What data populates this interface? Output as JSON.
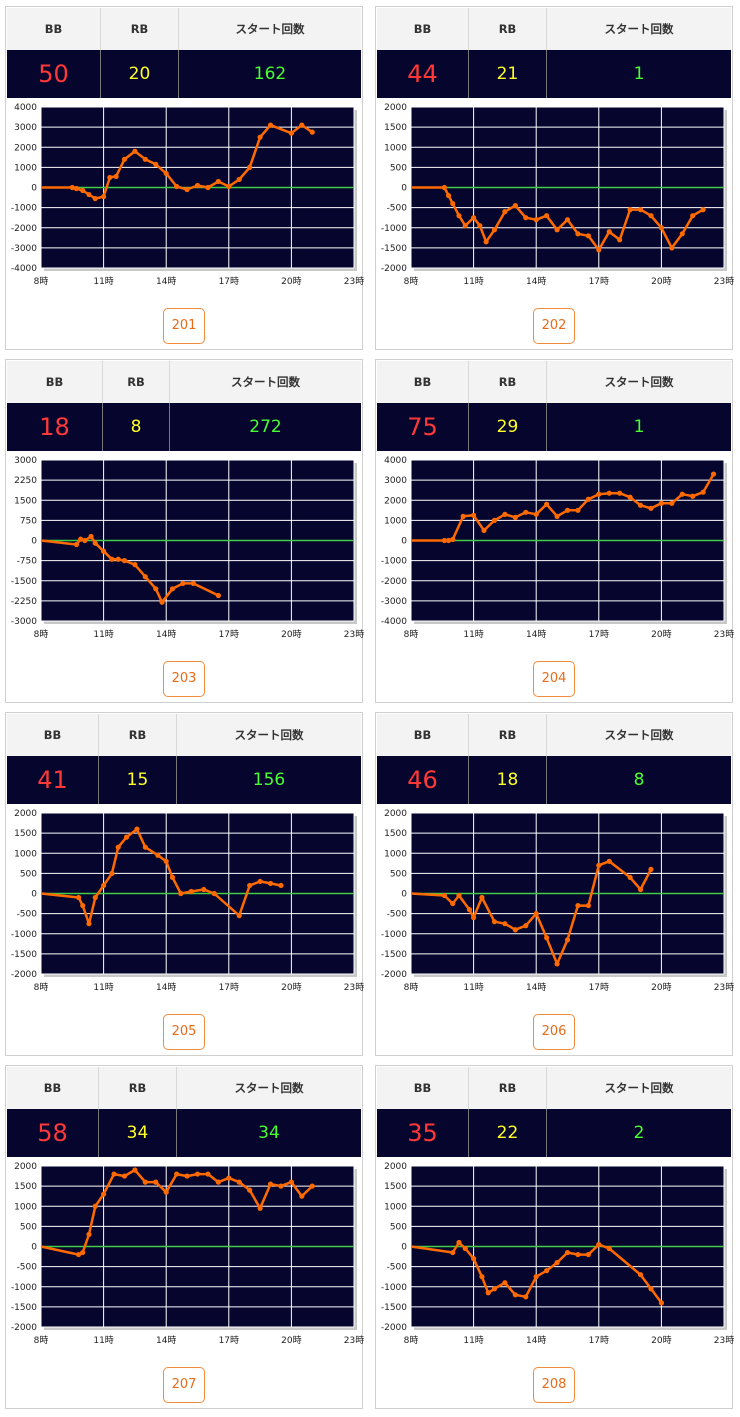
{
  "colors": {
    "header_bg": "#f3f3f3",
    "value_bg": "#05052e",
    "bb": "#ff3838",
    "rb": "#ffff28",
    "start": "#48ff30",
    "line": "#ff6a00",
    "zero_line": "#44cc44",
    "plot_bg": "#05052e",
    "grid": "#ffffff",
    "button": "#e86b1a"
  },
  "labels": {
    "bb": "BB",
    "rb": "RB",
    "start": "スタート回数"
  },
  "machines": [
    {
      "number": "201",
      "bb": "50",
      "rb": "20",
      "start": "162"
    },
    {
      "number": "202",
      "bb": "44",
      "rb": "21",
      "start": "1"
    },
    {
      "number": "203",
      "bb": "18",
      "rb": "8",
      "start": "272"
    },
    {
      "number": "204",
      "bb": "75",
      "rb": "29",
      "start": "1"
    },
    {
      "number": "205",
      "bb": "41",
      "rb": "15",
      "start": "156"
    },
    {
      "number": "206",
      "bb": "46",
      "rb": "18",
      "start": "8"
    },
    {
      "number": "207",
      "bb": "58",
      "rb": "34",
      "start": "34"
    },
    {
      "number": "208",
      "bb": "35",
      "rb": "22",
      "start": "2"
    }
  ],
  "chart_data": [
    {
      "type": "line",
      "machine": "201",
      "x_ticks": [
        "8時",
        "11時",
        "14時",
        "17時",
        "20時",
        "23時"
      ],
      "xlim": [
        8,
        23
      ],
      "y_ticks": [
        "4000",
        "3000",
        "2000",
        "1000",
        "0",
        "-1000",
        "-2000",
        "-3000",
        "-4000"
      ],
      "ylim": [
        -4000,
        4000
      ],
      "grid": true,
      "legend": "none",
      "series": [
        {
          "x": [
            8,
            9.5,
            9.7,
            10,
            10.3,
            10.6,
            11,
            11.3,
            11.6,
            12,
            12.5,
            13,
            13.5,
            14,
            14.5,
            15,
            15.5,
            16,
            16.5,
            17,
            17.5,
            18,
            18.5,
            19,
            20,
            20.5,
            21
          ],
          "y": [
            0,
            0,
            -50,
            -150,
            -350,
            -550,
            -450,
            500,
            550,
            1400,
            1800,
            1400,
            1150,
            700,
            50,
            -100,
            100,
            0,
            300,
            50,
            400,
            1000,
            2500,
            3100,
            2700,
            3100,
            2750
          ]
        }
      ]
    },
    {
      "type": "line",
      "machine": "202",
      "x_ticks": [
        "8時",
        "11時",
        "14時",
        "17時",
        "20時",
        "23時"
      ],
      "xlim": [
        8,
        23
      ],
      "y_ticks": [
        "2000",
        "1500",
        "1000",
        "500",
        "0",
        "-500",
        "-1000",
        "-1500",
        "-2000"
      ],
      "ylim": [
        -2000,
        2000
      ],
      "grid": true,
      "legend": "none",
      "series": [
        {
          "x": [
            8,
            9.6,
            9.8,
            10,
            10.3,
            10.6,
            11,
            11.3,
            11.6,
            12,
            12.5,
            13,
            13.5,
            14,
            14.5,
            15,
            15.5,
            16,
            16.5,
            17,
            17.5,
            18,
            18.5,
            19,
            19.5,
            20,
            20.5,
            21,
            21.5,
            22
          ],
          "y": [
            0,
            0,
            -200,
            -400,
            -700,
            -950,
            -750,
            -950,
            -1350,
            -1050,
            -600,
            -450,
            -750,
            -800,
            -700,
            -1050,
            -800,
            -1150,
            -1200,
            -1550,
            -1100,
            -1300,
            -550,
            -550,
            -700,
            -1000,
            -1500,
            -1150,
            -700,
            -550
          ]
        }
      ]
    },
    {
      "type": "line",
      "machine": "203",
      "x_ticks": [
        "8時",
        "11時",
        "14時",
        "17時",
        "20時",
        "23時"
      ],
      "xlim": [
        8,
        23
      ],
      "y_ticks": [
        "3000",
        "2250",
        "1500",
        "750",
        "0",
        "-750",
        "-1500",
        "-2250",
        "-3000"
      ],
      "ylim": [
        -3000,
        3000
      ],
      "grid": true,
      "legend": "none",
      "series": [
        {
          "x": [
            8,
            9.7,
            9.9,
            10.1,
            10.4,
            10.6,
            11,
            11.4,
            11.7,
            12,
            12.5,
            13,
            13.5,
            13.8,
            14.3,
            14.8,
            15.3,
            16.5
          ],
          "y": [
            0,
            -150,
            50,
            0,
            150,
            -100,
            -400,
            -700,
            -700,
            -750,
            -900,
            -1350,
            -1800,
            -2300,
            -1800,
            -1600,
            -1600,
            -2050
          ]
        }
      ]
    },
    {
      "type": "line",
      "machine": "204",
      "x_ticks": [
        "8時",
        "11時",
        "14時",
        "17時",
        "20時",
        "23時"
      ],
      "xlim": [
        8,
        23
      ],
      "y_ticks": [
        "4000",
        "3000",
        "2000",
        "1000",
        "0",
        "-1000",
        "-2000",
        "-3000",
        "-4000"
      ],
      "ylim": [
        -4000,
        4000
      ],
      "grid": true,
      "legend": "none",
      "series": [
        {
          "x": [
            8,
            9.6,
            9.8,
            10,
            10.5,
            11,
            11.5,
            12,
            12.5,
            13,
            13.5,
            14,
            14.5,
            15,
            15.5,
            16,
            16.5,
            17,
            17.5,
            18,
            18.5,
            19,
            19.5,
            20,
            20.5,
            21,
            21.5,
            22,
            22.5
          ],
          "y": [
            0,
            0,
            0,
            50,
            1200,
            1250,
            500,
            1000,
            1300,
            1150,
            1400,
            1300,
            1800,
            1200,
            1500,
            1500,
            2050,
            2300,
            2350,
            2350,
            2150,
            1750,
            1600,
            1850,
            1850,
            2300,
            2200,
            2400,
            3300
          ]
        }
      ]
    },
    {
      "type": "line",
      "machine": "205",
      "x_ticks": [
        "8時",
        "11時",
        "14時",
        "17時",
        "20時",
        "23時"
      ],
      "xlim": [
        8,
        23
      ],
      "y_ticks": [
        "2000",
        "1500",
        "1000",
        "500",
        "0",
        "-500",
        "-1000",
        "-1500",
        "-2000"
      ],
      "ylim": [
        -2000,
        2000
      ],
      "grid": true,
      "legend": "none",
      "series": [
        {
          "x": [
            8,
            9.8,
            10,
            10.3,
            10.6,
            11,
            11.4,
            11.7,
            12.1,
            12.6,
            13,
            13.6,
            14,
            14.3,
            14.7,
            15.2,
            15.8,
            16.3,
            17.5,
            18,
            18.5,
            19,
            19.5
          ],
          "y": [
            0,
            -100,
            -300,
            -750,
            -100,
            200,
            500,
            1150,
            1400,
            1600,
            1150,
            950,
            800,
            400,
            0,
            50,
            100,
            0,
            -550,
            200,
            300,
            250,
            200
          ]
        }
      ]
    },
    {
      "type": "line",
      "machine": "206",
      "x_ticks": [
        "8時",
        "11時",
        "14時",
        "17時",
        "20時",
        "23時"
      ],
      "xlim": [
        8,
        23
      ],
      "y_ticks": [
        "2000",
        "1500",
        "1000",
        "500",
        "0",
        "-500",
        "-1000",
        "-1500",
        "-2000"
      ],
      "ylim": [
        -2000,
        2000
      ],
      "grid": true,
      "legend": "none",
      "series": [
        {
          "x": [
            8,
            9.6,
            10,
            10.3,
            10.8,
            11,
            11.4,
            12,
            12.5,
            13,
            13.5,
            14,
            14.5,
            15,
            15.5,
            16,
            16.5,
            17,
            17.5,
            18.5,
            19,
            19.5
          ],
          "y": [
            0,
            -50,
            -250,
            -50,
            -400,
            -600,
            -100,
            -700,
            -750,
            -900,
            -800,
            -500,
            -1100,
            -1750,
            -1150,
            -300,
            -300,
            700,
            800,
            400,
            100,
            600
          ]
        }
      ]
    },
    {
      "type": "line",
      "machine": "207",
      "x_ticks": [
        "8時",
        "11時",
        "14時",
        "17時",
        "20時",
        "23時"
      ],
      "xlim": [
        8,
        23
      ],
      "y_ticks": [
        "2000",
        "1500",
        "1000",
        "500",
        "0",
        "-500",
        "-1000",
        "-1500",
        "-2000"
      ],
      "ylim": [
        -2000,
        2000
      ],
      "grid": true,
      "legend": "none",
      "series": [
        {
          "x": [
            8,
            9.8,
            10,
            10.3,
            10.6,
            11,
            11.5,
            12,
            12.5,
            13,
            13.5,
            14,
            14.5,
            15,
            15.5,
            16,
            16.5,
            17,
            17.5,
            18,
            18.5,
            19,
            19.5,
            20,
            20.5,
            21
          ],
          "y": [
            0,
            -200,
            -150,
            300,
            1000,
            1300,
            1800,
            1750,
            1900,
            1600,
            1600,
            1350,
            1800,
            1750,
            1800,
            1800,
            1600,
            1700,
            1600,
            1400,
            950,
            1550,
            1500,
            1600,
            1250,
            1500
          ]
        }
      ]
    },
    {
      "type": "line",
      "machine": "208",
      "x_ticks": [
        "8時",
        "11時",
        "14時",
        "17時",
        "20時",
        "23時"
      ],
      "xlim": [
        8,
        23
      ],
      "y_ticks": [
        "2000",
        "1500",
        "1000",
        "500",
        "0",
        "-500",
        "-1000",
        "-1500",
        "-2000"
      ],
      "ylim": [
        -2000,
        2000
      ],
      "grid": true,
      "legend": "none",
      "series": [
        {
          "x": [
            8,
            10,
            10.3,
            10.6,
            11,
            11.4,
            11.7,
            12,
            12.5,
            13,
            13.5,
            14,
            14.5,
            15,
            15.5,
            16,
            16.5,
            17,
            17.5,
            19,
            19.5,
            20
          ],
          "y": [
            0,
            -150,
            100,
            -50,
            -300,
            -750,
            -1150,
            -1050,
            -900,
            -1200,
            -1250,
            -750,
            -600,
            -400,
            -150,
            -200,
            -200,
            50,
            -50,
            -700,
            -1050,
            -1400
          ]
        }
      ]
    }
  ]
}
